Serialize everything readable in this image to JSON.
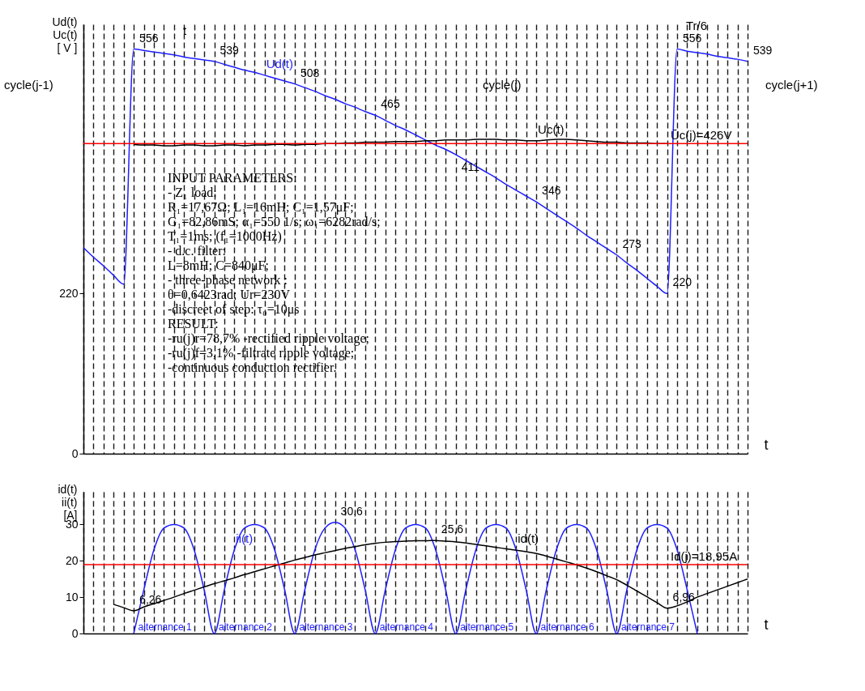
{
  "chart_data": [
    {
      "type": "line",
      "xlabel": "t",
      "ylabel": "Ud(t)\nUc(t)\n[ V ]",
      "grid": "x",
      "tick_labels": "y",
      "ylim": [
        0,
        590
      ],
      "yticks": [
        0,
        220
      ],
      "categories": [
        null,
        null,
        null,
        null,
        null,
        null,
        null,
        null,
        null,
        null,
        null,
        null,
        null,
        null,
        null,
        null,
        null,
        null,
        null,
        null,
        null,
        null,
        null,
        null,
        null,
        null,
        null,
        null,
        null,
        null,
        null,
        null,
        null,
        null,
        null,
        null,
        null,
        null,
        null,
        null,
        null,
        null,
        null,
        null,
        null,
        null,
        null,
        null,
        null,
        null,
        null,
        null,
        null,
        null,
        null,
        null,
        null,
        null,
        null,
        null,
        null,
        null,
        null,
        null,
        null,
        null,
        null
      ],
      "series": [
        {
          "name": "Ud(t)",
          "color": "#1f1fff",
          "values": [
            283,
            270,
            258,
            245,
            233,
            556,
            554,
            552,
            550,
            548,
            545,
            543,
            541,
            539,
            535,
            531,
            527,
            524,
            520,
            516,
            512,
            508,
            503,
            498,
            492,
            487,
            481,
            476,
            470,
            465,
            458,
            451,
            445,
            438,
            431,
            424,
            418,
            411,
            403,
            395,
            387,
            379,
            370,
            362,
            354,
            346,
            337,
            328,
            319,
            310,
            300,
            291,
            282,
            273,
            262,
            252,
            241,
            230,
            220,
            556,
            553,
            551,
            549,
            546,
            544,
            542,
            539
          ],
          "value_labels": [
            null,
            null,
            null,
            null,
            null,
            "556",
            null,
            null,
            null,
            null,
            null,
            null,
            null,
            "539",
            null,
            null,
            null,
            null,
            null,
            null,
            null,
            "508",
            null,
            null,
            null,
            null,
            null,
            null,
            null,
            "465",
            null,
            null,
            null,
            null,
            null,
            null,
            null,
            "411",
            null,
            null,
            null,
            null,
            null,
            null,
            null,
            "346",
            null,
            null,
            null,
            null,
            null,
            null,
            null,
            "273",
            null,
            null,
            null,
            null,
            "220",
            "556",
            null,
            null,
            null,
            null,
            null,
            null,
            "539"
          ]
        },
        {
          "name": "Uc(t)",
          "color": "#000000",
          "values": [
            null,
            null,
            null,
            null,
            null,
            425,
            424,
            424,
            423,
            423,
            424,
            424,
            423,
            423,
            424,
            424,
            423,
            424,
            424,
            425,
            425,
            424,
            425,
            425,
            426,
            426,
            427,
            427,
            428,
            428,
            428,
            429,
            429,
            429,
            430,
            430,
            431,
            431,
            431,
            432,
            432,
            432,
            431,
            431,
            430,
            430,
            431,
            432,
            432,
            431,
            430,
            429,
            428,
            428,
            427,
            427,
            427,
            426,
            426,
            null,
            null,
            null,
            null,
            null,
            null,
            null,
            null
          ]
        }
      ],
      "ref_lines": [
        {
          "axis": "y",
          "value": 426,
          "label": "Ūc(j)=426V",
          "color": "#ff0000"
        }
      ],
      "annotations": [
        "t",
        "cycle(j-1)",
        "cycle(j)",
        "cycle(j+1)",
        "Tr/6",
        "INPUT PARAMETERS:",
        "-   Z₁ load:",
        "R₁=17,67Ω; L₁=16mH; C₁=1,57μF;",
        "G₁=82,86mS; α₁=550 1/s; ω₁=6282rad/s;",
        "T₁=1ms; (f₁=1000Hz)",
        "- d.c. filter:",
        "L=8mH; C=840μF;",
        "- three-phase network :",
        "  θ=0,6423rad; Ur=230V",
        "-discreet of step:  τ₀=10μs",
        "RESULT:",
        "-ru(j)r=78,7% -rectified ripple voltage;",
        "-ru(j)f=3,1% -filtrate ripple voltage;",
        "-continuous conduction rectifier."
      ]
    },
    {
      "type": "line",
      "xlabel": "t",
      "ylabel": "id(t)\nii(t)\n[A]",
      "grid": "x",
      "tick_labels": "y",
      "ylim": [
        0,
        39
      ],
      "yticks": [
        0,
        10,
        20,
        30
      ],
      "categories": [
        null,
        null,
        null,
        null,
        null,
        null,
        null,
        null,
        null,
        null,
        null,
        null,
        null,
        null,
        null,
        null,
        null,
        null,
        null,
        null,
        null,
        null,
        null,
        null,
        null,
        null,
        null,
        null,
        null,
        null,
        null,
        null,
        null,
        null,
        null,
        null,
        null,
        null,
        null,
        null,
        null,
        null,
        null,
        null,
        null,
        null,
        null,
        null,
        null,
        null,
        null,
        null,
        null,
        null,
        null,
        null,
        null,
        null,
        null,
        null,
        null,
        null,
        null,
        null,
        null,
        null,
        null
      ],
      "series": [
        {
          "name": "ii(t)",
          "color": "#1f1fff",
          "values": [
            null,
            null,
            null,
            null,
            null,
            0,
            12,
            23,
            29,
            30,
            29,
            23,
            12,
            0,
            12,
            23,
            29,
            30,
            29,
            23,
            12,
            0,
            12,
            23,
            29,
            30.6,
            29,
            23,
            12,
            0,
            12,
            23,
            29,
            30,
            29,
            23,
            12,
            0,
            12,
            23,
            29,
            30,
            29,
            23,
            12,
            0,
            12,
            23,
            29,
            30,
            29,
            23,
            12,
            0,
            12,
            23,
            29,
            30,
            29,
            23,
            12,
            0,
            null,
            null,
            null,
            null,
            null
          ],
          "value_labels": [
            null,
            null,
            null,
            null,
            null,
            null,
            null,
            null,
            null,
            null,
            null,
            null,
            null,
            null,
            null,
            null,
            null,
            null,
            null,
            null,
            null,
            null,
            null,
            null,
            null,
            "30,6",
            null,
            null,
            null,
            null,
            null,
            null,
            null,
            null,
            null,
            null,
            null,
            null,
            null,
            null,
            null,
            null,
            null,
            null,
            null,
            null,
            null,
            null,
            null,
            null,
            null,
            null,
            null,
            null,
            null,
            null,
            null,
            null,
            null,
            null,
            null,
            null,
            null,
            null,
            null,
            null,
            null
          ]
        },
        {
          "name": "id(t)",
          "color": "#000000",
          "values": [
            null,
            null,
            null,
            8,
            7.1,
            6.26,
            7.3,
            8.2,
            9.1,
            10.0,
            11.0,
            11.9,
            12.8,
            13.7,
            14.5,
            15.3,
            16.2,
            17.0,
            17.8,
            18.6,
            19.4,
            20.2,
            20.9,
            21.6,
            22.2,
            22.8,
            23.4,
            23.9,
            24.4,
            24.8,
            25.1,
            25.3,
            25.4,
            25.5,
            25.5,
            25.6,
            25.4,
            25.2,
            24.9,
            24.5,
            24.1,
            23.7,
            23.3,
            22.9,
            22.5,
            22.0,
            21.3,
            20.5,
            19.7,
            18.9,
            18.0,
            17.0,
            15.9,
            14.8,
            13.3,
            11.7,
            10.1,
            8.5,
            6.96,
            7.6,
            8.7,
            10,
            11,
            12,
            13,
            14,
            15
          ],
          "value_labels": [
            null,
            null,
            null,
            null,
            null,
            "6,26",
            null,
            null,
            null,
            null,
            null,
            null,
            null,
            null,
            null,
            null,
            null,
            null,
            null,
            null,
            null,
            null,
            null,
            null,
            null,
            null,
            null,
            null,
            null,
            null,
            null,
            null,
            null,
            null,
            null,
            "25,6",
            null,
            null,
            null,
            null,
            null,
            null,
            null,
            null,
            null,
            null,
            null,
            null,
            null,
            null,
            null,
            null,
            null,
            null,
            null,
            null,
            null,
            null,
            "6,96",
            null,
            null,
            null,
            null,
            null,
            null,
            null,
            null
          ]
        }
      ],
      "ref_lines": [
        {
          "axis": "y",
          "value": 18.95,
          "label": "Id(j)=18,95A",
          "color": "#ff0000"
        }
      ],
      "annotations": [
        "alternance 1",
        "alternance 2",
        "alternance 3",
        "alternance 4",
        "alternance 5",
        "alternance 6",
        "alternance 7"
      ]
    }
  ]
}
